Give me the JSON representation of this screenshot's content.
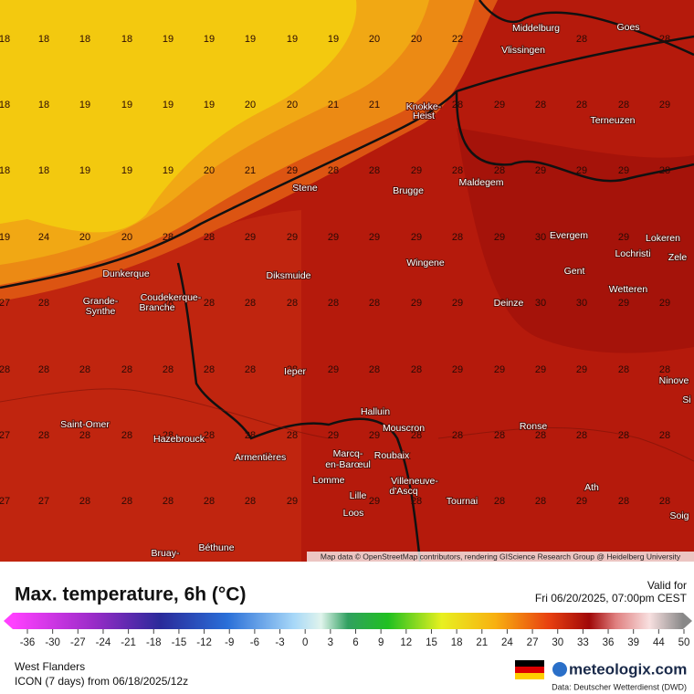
{
  "map": {
    "grid": [
      [
        18,
        18,
        18,
        18,
        19,
        19,
        19,
        19,
        19,
        20,
        20,
        22,
        null,
        null,
        28,
        null,
        28
      ],
      [
        18,
        18,
        19,
        19,
        19,
        19,
        20,
        20,
        21,
        21,
        null,
        28,
        29,
        28,
        28,
        28,
        29
      ],
      [
        18,
        18,
        19,
        19,
        19,
        20,
        21,
        29,
        28,
        28,
        29,
        28,
        28,
        29,
        29,
        29,
        28
      ],
      [
        19,
        24,
        20,
        20,
        28,
        28,
        29,
        29,
        29,
        29,
        29,
        28,
        29,
        30,
        null,
        29,
        null
      ],
      [
        27,
        28,
        null,
        null,
        28,
        28,
        28,
        28,
        28,
        28,
        29,
        29,
        30,
        30,
        30,
        29,
        29
      ],
      [
        28,
        28,
        28,
        28,
        28,
        28,
        28,
        28,
        29,
        28,
        28,
        29,
        29,
        29,
        29,
        28,
        28
      ],
      [
        27,
        28,
        28,
        28,
        28,
        28,
        28,
        28,
        29,
        29,
        28,
        28,
        28,
        28,
        28,
        28,
        28
      ],
      [
        27,
        27,
        28,
        28,
        28,
        28,
        28,
        29,
        null,
        29,
        28,
        null,
        28,
        28,
        29,
        28,
        28
      ]
    ],
    "places": [
      "Middelburg",
      "Vlissingen",
      "Goes",
      "Knokke-",
      "Heist",
      "Terneuzen",
      "Stene",
      "Brugge",
      "Maldegem",
      "Evergem",
      "Lokeren",
      "Lochristi",
      "Zele",
      "Dunkerque",
      "Diksmuide",
      "Wingene",
      "Gent",
      "Grande-",
      "Synthe",
      "Coudekerque-",
      "Branche",
      "Wetteren",
      "Deinze",
      "Ieper",
      "Ninove",
      "Si",
      "Halluin",
      "Saint-Omer",
      "Mouscron",
      "Ronse",
      "Hazebrouck",
      "Armentières",
      "Marcq-",
      "en-Barœul",
      "Roubaix",
      "Villeneuve-",
      "d'Ascq",
      "Lomme",
      "Lille",
      "Tournai",
      "Ath",
      "Loos",
      "Soig",
      "Béthune",
      "Bruay-"
    ],
    "attribution": "Map data © OpenStreetMap contributors, rendering GIScience Research Group @ Heidelberg University"
  },
  "panel": {
    "title": "Max. temperature, 6h (°C)",
    "valid_label": "Valid for",
    "valid_time": "Fri 06/20/2025, 07:00pm CEST",
    "legend_ticks": [
      -36,
      -30,
      -27,
      -24,
      -21,
      -18,
      -15,
      -12,
      -9,
      -6,
      -3,
      0,
      3,
      6,
      9,
      12,
      15,
      18,
      21,
      24,
      27,
      30,
      33,
      36,
      39,
      44,
      50
    ],
    "region": "West Flanders",
    "model": "ICON (7 days)  from  06/18/2025/12z",
    "brand": "meteologix.com",
    "source": "Data: Deutscher Wetterdienst (DWD)"
  }
}
